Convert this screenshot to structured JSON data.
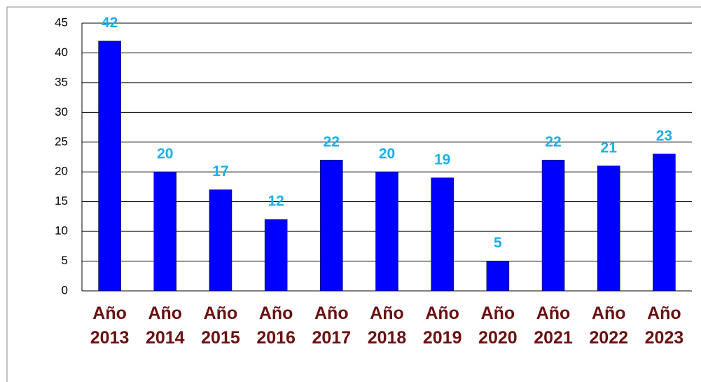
{
  "chart_data": {
    "type": "bar",
    "categories": [
      "Año 2013",
      "Año 2014",
      "Año 2015",
      "Año 2016",
      "Año 2017",
      "Año 2018",
      "Año 2019",
      "Año 2020",
      "Año 2021",
      "Año 2022",
      "Año 2023"
    ],
    "values": [
      42,
      20,
      17,
      12,
      22,
      20,
      19,
      5,
      22,
      21,
      23
    ],
    "color": "#0000ff",
    "ylim": [
      0,
      45
    ],
    "yticks": [
      0,
      5,
      10,
      15,
      20,
      25,
      30,
      35,
      40,
      45
    ],
    "grid": true
  }
}
